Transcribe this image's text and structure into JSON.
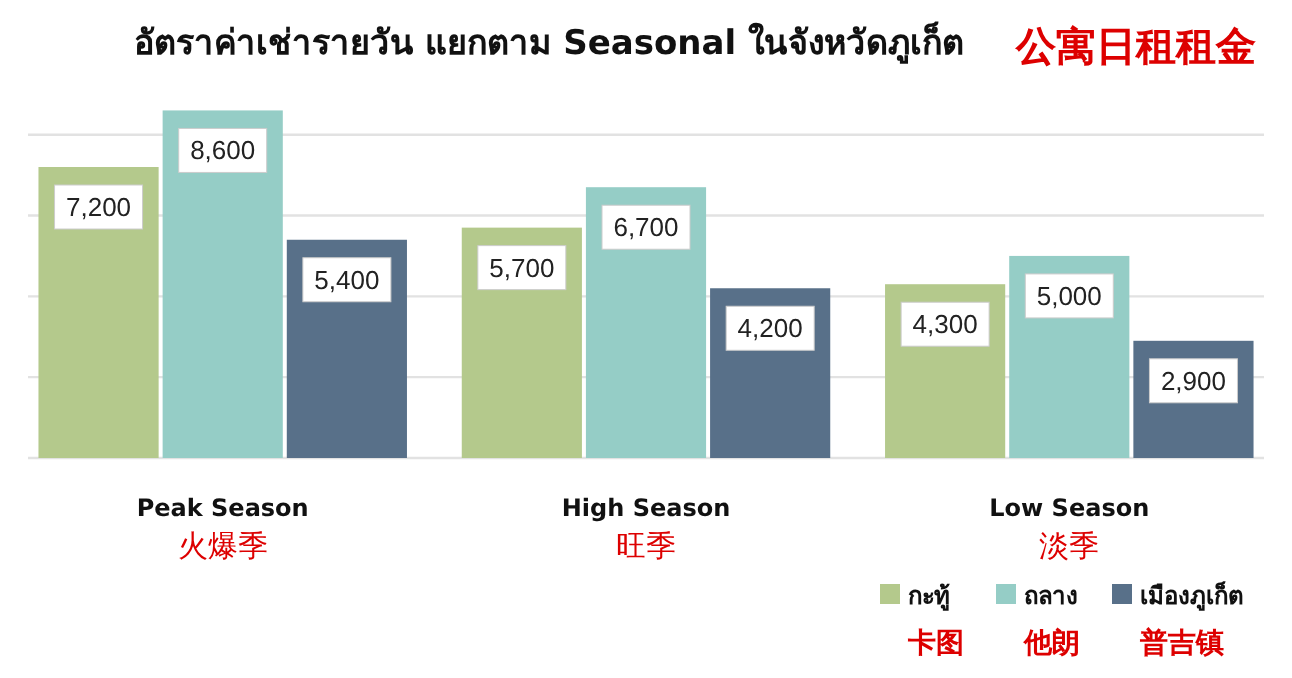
{
  "chart_data": {
    "type": "bar",
    "title": "อัตราค่าเช่ารายวัน แยกตาม Seasonal ในจังหวัดภูเก็ต",
    "subtitle": "公寓日租租金",
    "categories": [
      "Peak Season\n火爆季",
      "High Season\n旺季",
      "Low Season\n淡季"
    ],
    "series": [
      {
        "name": "กะทู้\n卡图",
        "color": "#b4c98c",
        "values": [
          7200,
          5700,
          4300
        ],
        "value_labels": [
          "7,200",
          "5,700",
          "4,300"
        ]
      },
      {
        "name": "ถลาง\n他朗",
        "color": "#95cdc6",
        "values": [
          8600,
          6700,
          5000
        ],
        "value_labels": [
          "8,600",
          "6,700",
          "5,000"
        ]
      },
      {
        "name": "เมืองภูเก็ต\n普吉镇",
        "color": "#587089",
        "values": [
          5400,
          4200,
          2900
        ],
        "value_labels": [
          "5,400",
          "4,200",
          "2,900"
        ]
      }
    ],
    "grid": "y",
    "legend": "bottom right"
  }
}
